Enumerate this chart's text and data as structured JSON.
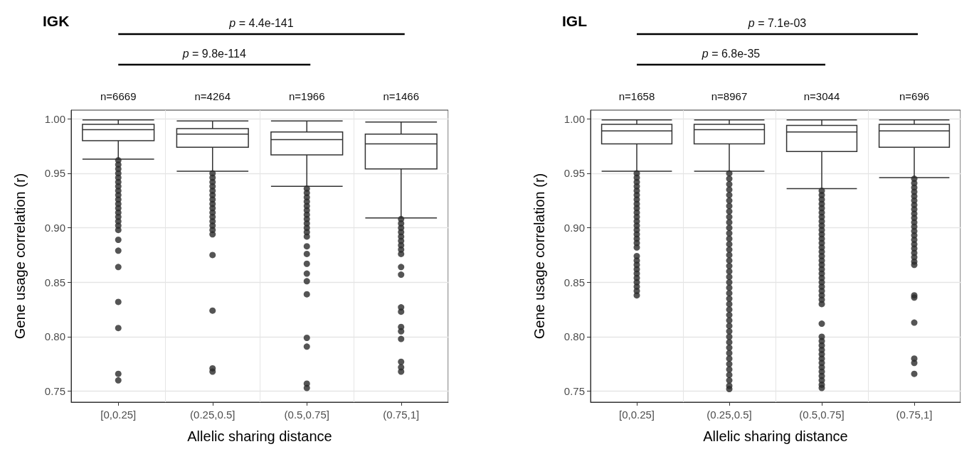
{
  "chart_data": [
    {
      "type": "box",
      "title": "IGK",
      "xlabel": "Allelic sharing distance",
      "ylabel": "Gene usage correlation (r)",
      "categories": [
        "[0,0.25]",
        "(0.25,0.5]",
        "(0.5,0.75]",
        "(0.75,1]"
      ],
      "boxes": [
        {
          "low": 0.963,
          "q1": 0.98,
          "median": 0.99,
          "q3": 0.995,
          "high": 0.999,
          "outliers": [
            0.962,
            0.958,
            0.954,
            0.95,
            0.946,
            0.942,
            0.938,
            0.934,
            0.93,
            0.926,
            0.922,
            0.918,
            0.914,
            0.91,
            0.906,
            0.902,
            0.898,
            0.889,
            0.879,
            0.864,
            0.832,
            0.808,
            0.766,
            0.76
          ]
        },
        {
          "low": 0.952,
          "q1": 0.974,
          "median": 0.986,
          "q3": 0.991,
          "high": 0.998,
          "outliers": [
            0.95,
            0.946,
            0.942,
            0.938,
            0.934,
            0.93,
            0.926,
            0.922,
            0.918,
            0.914,
            0.91,
            0.906,
            0.902,
            0.898,
            0.894,
            0.875,
            0.824,
            0.771,
            0.768
          ]
        },
        {
          "low": 0.938,
          "q1": 0.967,
          "median": 0.981,
          "q3": 0.988,
          "high": 0.998,
          "outliers": [
            0.936,
            0.932,
            0.928,
            0.924,
            0.92,
            0.916,
            0.912,
            0.908,
            0.904,
            0.9,
            0.896,
            0.892,
            0.883,
            0.876,
            0.867,
            0.858,
            0.851,
            0.839,
            0.799,
            0.791,
            0.757,
            0.753
          ]
        },
        {
          "low": 0.909,
          "q1": 0.954,
          "median": 0.977,
          "q3": 0.986,
          "high": 0.997,
          "outliers": [
            0.908,
            0.904,
            0.9,
            0.896,
            0.892,
            0.888,
            0.884,
            0.88,
            0.876,
            0.864,
            0.857,
            0.827,
            0.823,
            0.809,
            0.805,
            0.798,
            0.777,
            0.772,
            0.768
          ]
        }
      ],
      "ylim": [
        0.74,
        1.008
      ],
      "yticks": [
        {
          "value": 0.75,
          "label": "0.75"
        },
        {
          "value": 0.8,
          "label": "0.80"
        },
        {
          "value": 0.85,
          "label": "0.85"
        },
        {
          "value": 0.9,
          "label": "0.90"
        },
        {
          "value": 0.95,
          "label": "0.95"
        },
        {
          "value": 1,
          "label": "1.00"
        }
      ],
      "grid": true,
      "annotations": [
        "p = 4.4e-141",
        "p = 9.8e-114",
        "n=6669",
        "n=4264",
        "n=1966",
        "n=1466"
      ]
    },
    {
      "type": "box",
      "title": "IGL",
      "xlabel": "Allelic sharing distance",
      "ylabel": "Gene usage correlation (r)",
      "categories": [
        "[0,0.25]",
        "(0.25,0.5]",
        "(0.5,0.75]",
        "(0.75,1]"
      ],
      "boxes": [
        {
          "low": 0.952,
          "q1": 0.977,
          "median": 0.989,
          "q3": 0.995,
          "high": 0.999,
          "outliers": [
            0.95,
            0.946,
            0.942,
            0.938,
            0.934,
            0.93,
            0.926,
            0.922,
            0.918,
            0.914,
            0.91,
            0.906,
            0.902,
            0.898,
            0.894,
            0.89,
            0.886,
            0.882,
            0.874,
            0.87,
            0.866,
            0.862,
            0.858,
            0.854,
            0.85,
            0.846,
            0.842,
            0.838
          ]
        },
        {
          "low": 0.952,
          "q1": 0.977,
          "median": 0.99,
          "q3": 0.995,
          "high": 0.999,
          "outliers": [
            0.95,
            0.945,
            0.94,
            0.935,
            0.93,
            0.925,
            0.92,
            0.915,
            0.91,
            0.905,
            0.9,
            0.895,
            0.89,
            0.885,
            0.88,
            0.875,
            0.87,
            0.865,
            0.86,
            0.855,
            0.85,
            0.845,
            0.84,
            0.835,
            0.83,
            0.825,
            0.82,
            0.815,
            0.81,
            0.805,
            0.8,
            0.795,
            0.79,
            0.785,
            0.78,
            0.775,
            0.77,
            0.765,
            0.76,
            0.755,
            0.752
          ]
        },
        {
          "low": 0.936,
          "q1": 0.97,
          "median": 0.988,
          "q3": 0.994,
          "high": 0.999,
          "outliers": [
            0.934,
            0.93,
            0.926,
            0.922,
            0.918,
            0.914,
            0.91,
            0.906,
            0.902,
            0.898,
            0.894,
            0.89,
            0.886,
            0.882,
            0.878,
            0.874,
            0.87,
            0.866,
            0.862,
            0.858,
            0.854,
            0.85,
            0.846,
            0.842,
            0.838,
            0.834,
            0.83,
            0.812,
            0.8,
            0.796,
            0.792,
            0.788,
            0.784,
            0.78,
            0.776,
            0.772,
            0.768,
            0.764,
            0.76,
            0.756,
            0.753
          ]
        },
        {
          "low": 0.946,
          "q1": 0.974,
          "median": 0.989,
          "q3": 0.995,
          "high": 0.999,
          "outliers": [
            0.945,
            0.941,
            0.937,
            0.933,
            0.929,
            0.925,
            0.921,
            0.917,
            0.913,
            0.909,
            0.905,
            0.901,
            0.897,
            0.893,
            0.889,
            0.885,
            0.881,
            0.877,
            0.873,
            0.869,
            0.866,
            0.838,
            0.836,
            0.813,
            0.78,
            0.776,
            0.766
          ]
        }
      ],
      "ylim": [
        0.74,
        1.008
      ],
      "yticks": [
        {
          "value": 0.75,
          "label": "0.75"
        },
        {
          "value": 0.8,
          "label": "0.80"
        },
        {
          "value": 0.85,
          "label": "0.85"
        },
        {
          "value": 0.9,
          "label": "0.90"
        },
        {
          "value": 0.95,
          "label": "0.95"
        },
        {
          "value": 1,
          "label": "1.00"
        }
      ],
      "grid": true,
      "annotations": [
        "p = 7.1e-03",
        "p = 6.8e-35",
        "n=1658",
        "n=8967",
        "n=3044",
        "n=696"
      ]
    }
  ]
}
